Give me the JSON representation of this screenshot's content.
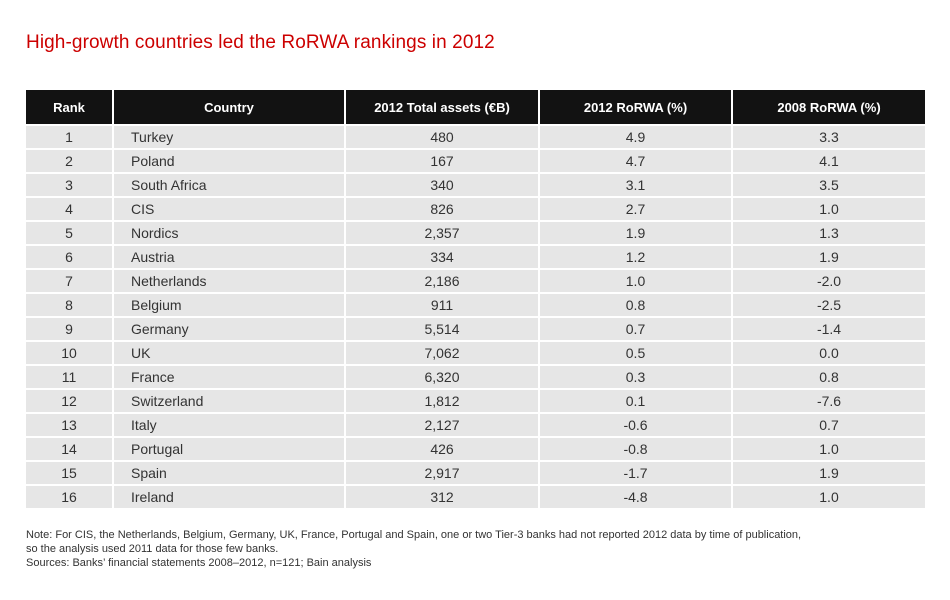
{
  "title": "High-growth countries led the RoRWA rankings in 2012",
  "table": {
    "headers": [
      "Rank",
      "Country",
      "2012 Total assets (€B)",
      "2012 RoRWA (%)",
      "2008 RoRWA (%)"
    ],
    "rows": [
      [
        "1",
        "Turkey",
        "480",
        "4.9",
        "3.3"
      ],
      [
        "2",
        "Poland",
        "167",
        "4.7",
        "4.1"
      ],
      [
        "3",
        "South Africa",
        "340",
        "3.1",
        "3.5"
      ],
      [
        "4",
        "CIS",
        "826",
        "2.7",
        "1.0"
      ],
      [
        "5",
        "Nordics",
        "2,357",
        "1.9",
        "1.3"
      ],
      [
        "6",
        "Austria",
        "334",
        "1.2",
        "1.9"
      ],
      [
        "7",
        "Netherlands",
        "2,186",
        "1.0",
        "-2.0"
      ],
      [
        "8",
        "Belgium",
        "911",
        "0.8",
        "-2.5"
      ],
      [
        "9",
        "Germany",
        "5,514",
        "0.7",
        "-1.4"
      ],
      [
        "10",
        "UK",
        "7,062",
        "0.5",
        "0.0"
      ],
      [
        "11",
        "France",
        "6,320",
        "0.3",
        "0.8"
      ],
      [
        "12",
        "Switzerland",
        "1,812",
        "0.1",
        "-7.6"
      ],
      [
        "13",
        "Italy",
        "2,127",
        "-0.6",
        "0.7"
      ],
      [
        "14",
        "Portugal",
        "426",
        "-0.8",
        "1.0"
      ],
      [
        "15",
        "Spain",
        "2,917",
        "-1.7",
        "1.9"
      ],
      [
        "16",
        "Ireland",
        "312",
        "-4.8",
        "1.0"
      ]
    ]
  },
  "notes": {
    "note_line1": "Note: For CIS, the Netherlands, Belgium, Germany, UK, France, Portugal and Spain, one or two Tier-3 banks had not reported 2012 data by time of publication,",
    "note_line2": "so the analysis used 2011 data for those few banks.",
    "sources": "Sources: Banks’ financial statements 2008–2012, n=121; Bain analysis"
  },
  "colors": {
    "title": "#cc0000",
    "header_bg": "#121212",
    "row_bg": "#e6e6e6"
  }
}
